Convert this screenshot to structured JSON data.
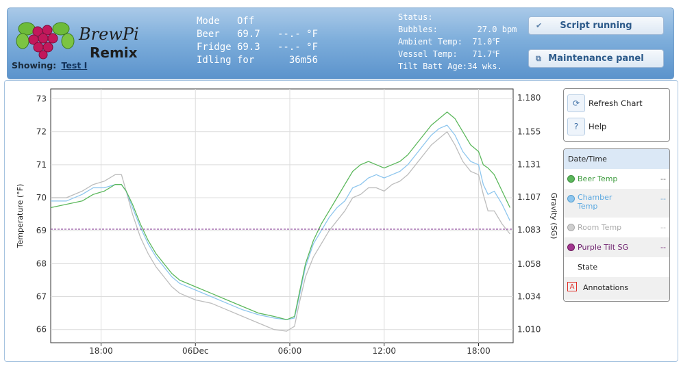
{
  "header": {
    "logo_text_top": "BrewPi",
    "logo_text_bottom": "Remix",
    "showing_label": "Showing:",
    "showing_value": "Test I",
    "mode_rows": [
      "Mode   Off",
      "Beer   69.7   --.- °F",
      "Fridge 69.3   --.- °F",
      "Idling for      36m56"
    ],
    "status_rows": [
      "Status:",
      "Bubbles:        27.0 bpm",
      "Ambient Temp:  71.0℉",
      "Vessel Temp:   71.7℉",
      "Tilt Batt Age:34 wks."
    ],
    "script_button": "Script running",
    "maintenance_button": "Maintenance panel"
  },
  "controls": {
    "refresh_label": "Refresh Chart",
    "help_label": "Help",
    "help_icon": "?"
  },
  "legend": {
    "header": "Date/Time",
    "items": [
      {
        "label": "Beer Temp",
        "value": "--",
        "color": "#5cb85c"
      },
      {
        "label": "Chamber Temp",
        "value": "--",
        "color": "#8ec6ee"
      },
      {
        "label": "Room Temp",
        "value": "--",
        "color": "#bdbdbd"
      },
      {
        "label": "Purple Tilt SG",
        "value": "--",
        "color": "#7a2a8a"
      },
      {
        "label": "State",
        "value": "",
        "color": ""
      },
      {
        "label": "Annotations",
        "value": "",
        "color": "#e0302a"
      }
    ]
  },
  "chart_data": {
    "type": "line",
    "ylabel": "Temperature (°F)",
    "y2label": "Gravity (SG)",
    "ylim": [
      65.6,
      73.3
    ],
    "y2lim": [
      1.0002,
      1.1864
    ],
    "yticks": [
      66,
      67,
      68,
      69,
      70,
      71,
      72,
      73
    ],
    "y2ticks": [
      "1.010",
      "1.034",
      "1.058",
      "1.083",
      "1.107",
      "1.131",
      "1.155",
      "1.180"
    ],
    "y2tick_values": [
      1.01,
      1.034,
      1.058,
      1.083,
      1.107,
      1.131,
      1.155,
      1.18
    ],
    "xlim": [
      14.8,
      44.2
    ],
    "xticks": [
      {
        "x": 18,
        "label": "18:00"
      },
      {
        "x": 24,
        "label": "06Dec"
      },
      {
        "x": 30,
        "label": "06:00"
      },
      {
        "x": 36,
        "label": "12:00"
      },
      {
        "x": 42,
        "label": "18:00"
      }
    ],
    "grid": true,
    "series": [
      {
        "name": "Room Temp",
        "color": "#bdbdbd",
        "x": [
          14.8,
          15.8,
          16.8,
          17.5,
          18.2,
          18.9,
          19.3,
          19.6,
          20.0,
          20.5,
          21.0,
          21.5,
          22.0,
          22.5,
          23.0,
          24.0,
          25.0,
          26.0,
          27.0,
          28.0,
          29.0,
          29.8,
          30.3,
          30.6,
          31.0,
          31.5,
          32.0,
          32.5,
          33.0,
          33.5,
          34.0,
          34.5,
          35.0,
          35.5,
          36.0,
          36.5,
          37.0,
          37.5,
          38.0,
          38.5,
          39.0,
          39.5,
          40.0,
          40.5,
          41.0,
          41.5,
          42.0,
          42.3,
          42.6,
          43.0,
          43.5,
          44.0
        ],
        "y": [
          70.0,
          70.0,
          70.2,
          70.4,
          70.5,
          70.7,
          70.7,
          70.2,
          69.5,
          68.8,
          68.3,
          67.9,
          67.6,
          67.3,
          67.1,
          66.9,
          66.8,
          66.6,
          66.4,
          66.2,
          66.0,
          65.95,
          66.1,
          66.8,
          67.6,
          68.2,
          68.6,
          69.0,
          69.3,
          69.6,
          70.0,
          70.1,
          70.3,
          70.3,
          70.2,
          70.4,
          70.5,
          70.7,
          71.0,
          71.3,
          71.6,
          71.8,
          72.0,
          71.6,
          71.1,
          70.8,
          70.7,
          70.1,
          69.6,
          69.6,
          69.2,
          68.9
        ]
      },
      {
        "name": "Chamber Temp",
        "color": "#8ec6ee",
        "x": [
          14.8,
          15.8,
          16.8,
          17.5,
          18.2,
          18.9,
          19.3,
          19.6,
          20.0,
          20.5,
          21.0,
          21.5,
          22.0,
          22.5,
          23.0,
          24.0,
          25.0,
          26.0,
          27.0,
          28.0,
          29.0,
          29.8,
          30.3,
          30.6,
          31.0,
          31.5,
          32.0,
          32.5,
          33.0,
          33.5,
          34.0,
          34.5,
          35.0,
          35.5,
          36.0,
          36.5,
          37.0,
          37.5,
          38.0,
          38.5,
          39.0,
          39.5,
          40.0,
          40.5,
          41.0,
          41.5,
          42.0,
          42.3,
          42.6,
          43.0,
          43.5,
          44.0
        ],
        "y": [
          69.9,
          69.9,
          70.1,
          70.3,
          70.3,
          70.4,
          70.4,
          70.2,
          69.7,
          69.1,
          68.6,
          68.2,
          67.9,
          67.6,
          67.4,
          67.2,
          67.0,
          66.8,
          66.6,
          66.45,
          66.35,
          66.3,
          66.35,
          67.0,
          67.9,
          68.6,
          69.0,
          69.4,
          69.7,
          69.9,
          70.3,
          70.4,
          70.6,
          70.7,
          70.6,
          70.7,
          70.8,
          71.0,
          71.3,
          71.6,
          71.9,
          72.1,
          72.2,
          71.9,
          71.4,
          71.1,
          71.0,
          70.4,
          70.1,
          70.2,
          69.8,
          69.3
        ]
      },
      {
        "name": "Beer Temp",
        "color": "#5cb85c",
        "x": [
          14.8,
          15.8,
          16.8,
          17.5,
          18.2,
          18.9,
          19.3,
          19.6,
          20.0,
          20.5,
          21.0,
          21.5,
          22.0,
          22.5,
          23.0,
          24.0,
          25.0,
          26.0,
          27.0,
          28.0,
          29.0,
          29.8,
          30.3,
          30.6,
          31.0,
          31.5,
          32.0,
          32.5,
          33.0,
          33.5,
          34.0,
          34.5,
          35.0,
          35.5,
          36.0,
          36.5,
          37.0,
          37.5,
          38.0,
          38.5,
          39.0,
          39.5,
          40.0,
          40.5,
          41.0,
          41.5,
          42.0,
          42.3,
          42.6,
          43.0,
          43.5,
          44.0
        ],
        "y": [
          69.7,
          69.8,
          69.9,
          70.1,
          70.2,
          70.4,
          70.4,
          70.2,
          69.8,
          69.2,
          68.7,
          68.3,
          68.0,
          67.7,
          67.5,
          67.3,
          67.1,
          66.9,
          66.7,
          66.5,
          66.4,
          66.3,
          66.4,
          67.1,
          68.0,
          68.7,
          69.2,
          69.6,
          70.0,
          70.4,
          70.8,
          71.0,
          71.1,
          71.0,
          70.9,
          71.0,
          71.1,
          71.3,
          71.6,
          71.9,
          72.2,
          72.4,
          72.6,
          72.4,
          72.0,
          71.6,
          71.4,
          71.0,
          70.9,
          70.7,
          70.2,
          69.7
        ]
      },
      {
        "name": "Purple Tilt SG",
        "color": "#7a2a8a",
        "dashed": true,
        "x": [
          14.8,
          44.2
        ],
        "y": [
          1.0835,
          1.0835
        ],
        "axis": "y2"
      }
    ]
  }
}
